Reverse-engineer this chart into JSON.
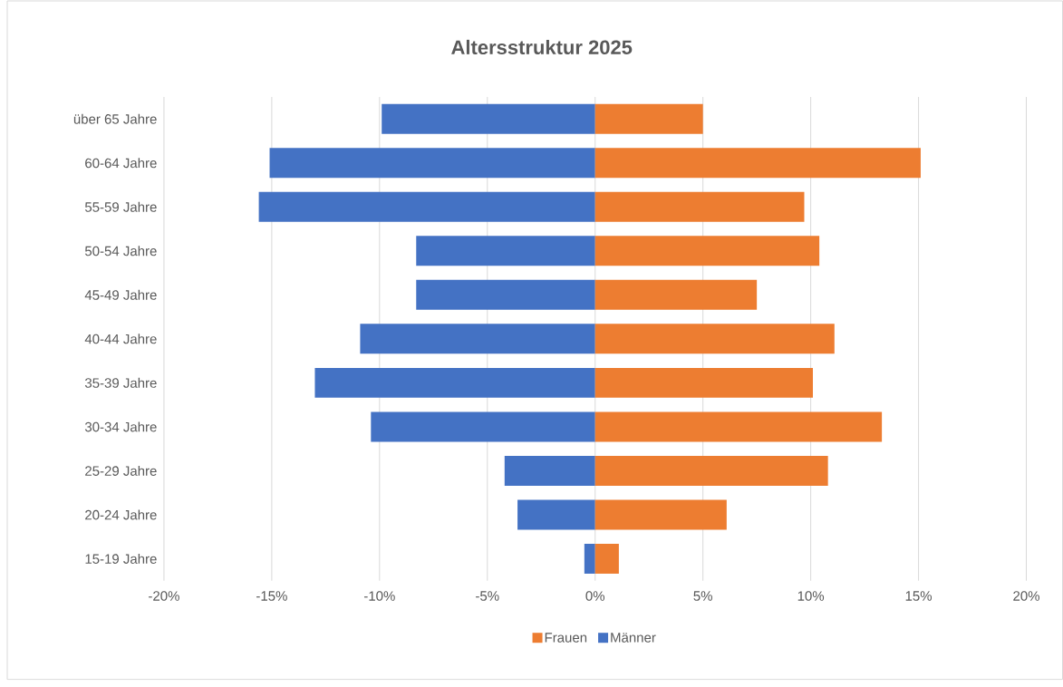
{
  "chart_data": {
    "type": "bar",
    "orientation": "horizontal",
    "title": "Altersstruktur 2025",
    "categories": [
      "über 65 Jahre",
      "60-64 Jahre",
      "55-59 Jahre",
      "50-54 Jahre",
      "45-49 Jahre",
      "40-44 Jahre",
      "35-39 Jahre",
      "30-34 Jahre",
      "25-29 Jahre",
      "20-24 Jahre",
      "15-19 Jahre"
    ],
    "series": [
      {
        "name": "Frauen",
        "color": "#ed7d31",
        "values": [
          5.0,
          15.1,
          9.7,
          10.4,
          7.5,
          11.1,
          10.1,
          13.3,
          10.8,
          6.1,
          1.1
        ]
      },
      {
        "name": "Männer",
        "color": "#4472c4",
        "values": [
          -9.9,
          -15.1,
          -15.6,
          -8.3,
          -8.3,
          -10.9,
          -13.0,
          -10.4,
          -4.2,
          -3.6,
          -0.5
        ]
      }
    ],
    "xlim": [
      -20,
      20
    ],
    "xticks": [
      {
        "value": -20,
        "label": "-20%"
      },
      {
        "value": -15,
        "label": "-15%"
      },
      {
        "value": -10,
        "label": "-10%"
      },
      {
        "value": -5,
        "label": "-5%"
      },
      {
        "value": 0,
        "label": "0%"
      },
      {
        "value": 5,
        "label": "5%"
      },
      {
        "value": 10,
        "label": "10%"
      },
      {
        "value": 15,
        "label": "15%"
      },
      {
        "value": 20,
        "label": "20%"
      }
    ],
    "stacked": true,
    "grid": "x",
    "legend": "bottom"
  }
}
